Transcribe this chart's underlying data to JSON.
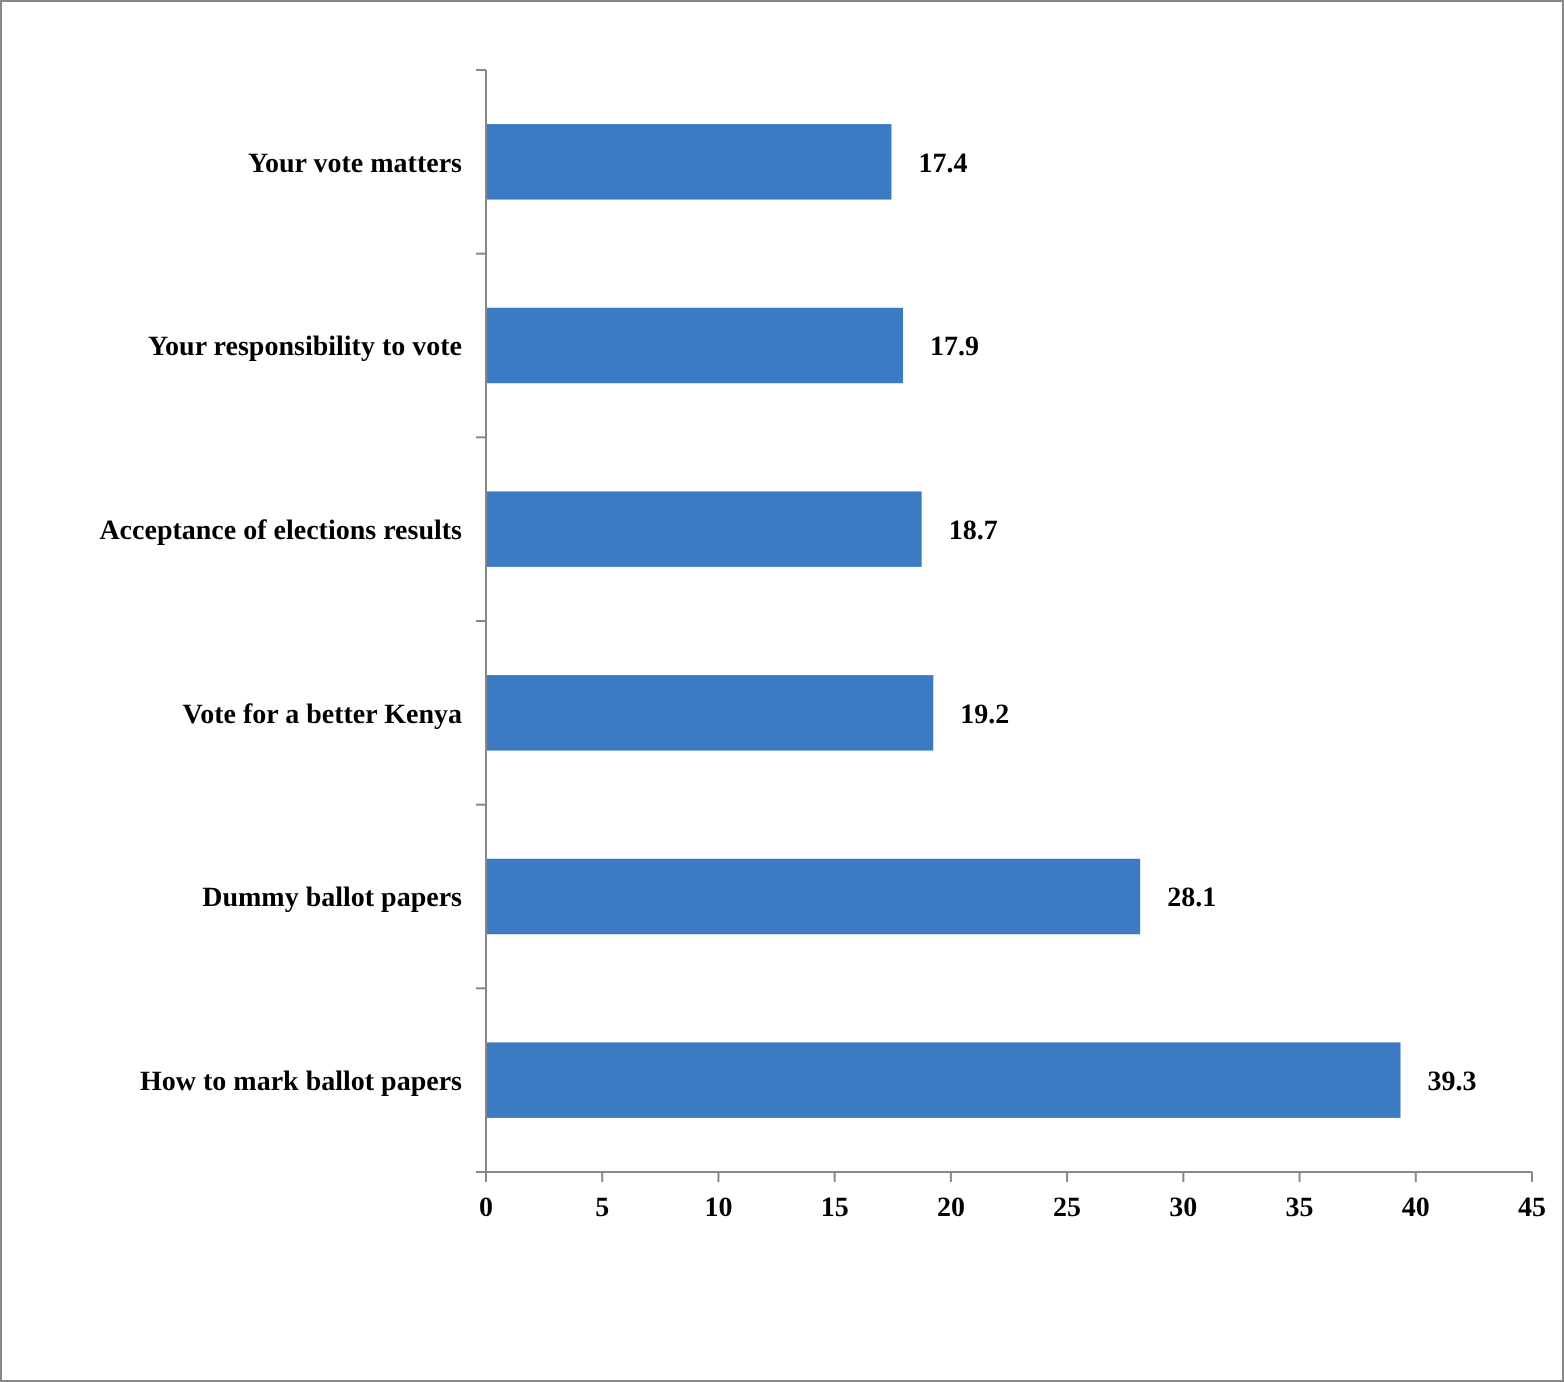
{
  "chart_data": {
    "type": "bar",
    "orientation": "horizontal",
    "categories": [
      "Your vote matters",
      "Your responsibility to vote",
      "Acceptance of elections results",
      "Vote for a better Kenya",
      "Dummy ballot papers",
      "How to mark ballot papers"
    ],
    "values": [
      17.4,
      17.9,
      18.7,
      19.2,
      28.1,
      39.3
    ],
    "color": "#3c7ac4",
    "xlim": [
      0,
      45
    ],
    "xticks": [
      0,
      5,
      10,
      15,
      20,
      25,
      30,
      35,
      40,
      45
    ],
    "data_labels": true,
    "grid": false
  }
}
